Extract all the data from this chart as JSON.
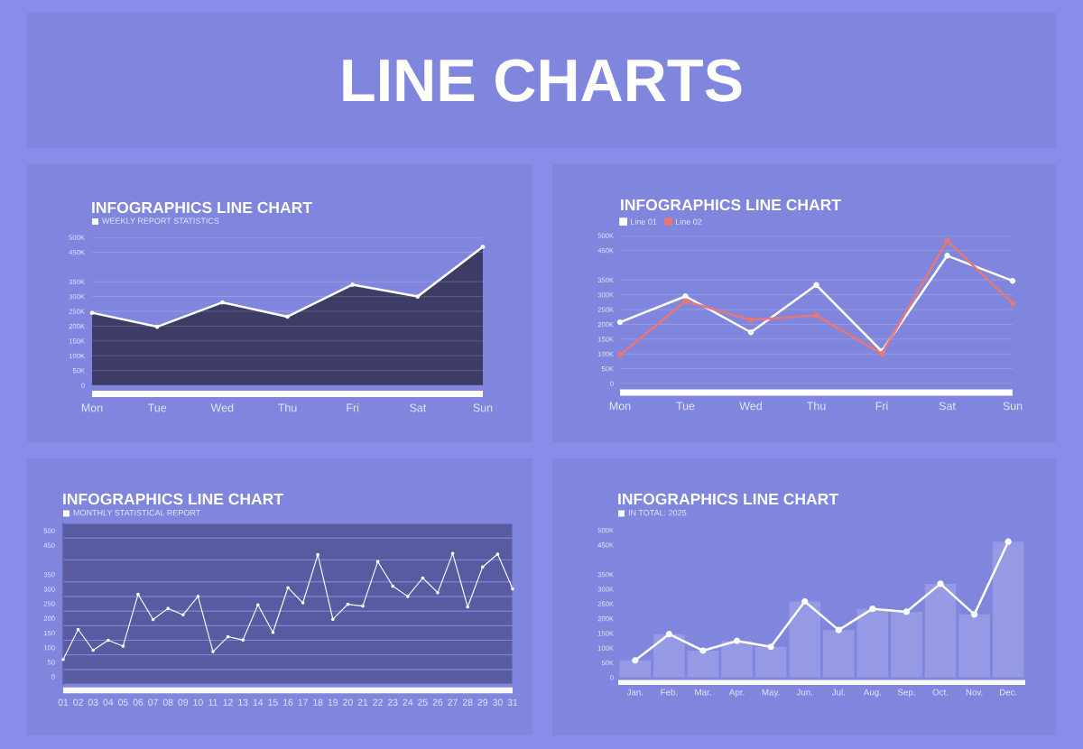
{
  "chart_data": [
    {
      "type": "other",
      "title": "LINE CHARTS"
    },
    {
      "type": "area",
      "title": "INFOGRAPHICS LINE CHART",
      "subtitle": "WEEKLY REPORT STATISTICS",
      "categories": [
        "Mon",
        "Tue",
        "Wed",
        "Thu",
        "Fri",
        "Sat",
        "Sun"
      ],
      "series": [
        {
          "color": "#3d3c66",
          "values": [
            245000,
            198000,
            280000,
            232000,
            340000,
            300000,
            468000
          ]
        }
      ],
      "ylim": [
        0,
        500000
      ],
      "yticks": [
        0,
        {
          "value": 50000,
          "label": "50K"
        },
        {
          "value": 100000,
          "label": "100K"
        },
        {
          "value": 150000,
          "label": "150K"
        },
        {
          "value": 200000,
          "label": "200K"
        },
        {
          "value": 250000,
          "label": "250K"
        },
        {
          "value": 300000,
          "label": "300K"
        },
        {
          "value": 350000,
          "label": "350K"
        },
        {
          "value": 450000,
          "label": "450K"
        },
        {
          "value": 500000,
          "label": "500K"
        }
      ],
      "grid": "y",
      "marker": "circle"
    },
    {
      "type": "line",
      "title": "INFOGRAPHICS LINE CHART",
      "categories": [
        "Mon",
        "Tue",
        "Wed",
        "Thu",
        "Fri",
        "Sat",
        "Sun"
      ],
      "series": [
        {
          "name": "Line 01",
          "color": "#ffffff",
          "values": [
            207000,
            295000,
            173000,
            333000,
            109000,
            432000,
            347000
          ]
        },
        {
          "name": "Line 02",
          "color": "#e67777",
          "values": [
            97000,
            278000,
            215000,
            230000,
            100000,
            483000,
            271000
          ]
        }
      ],
      "ylim": [
        0,
        500000
      ],
      "yticks": [
        0,
        {
          "value": 50000,
          "label": "50K"
        },
        {
          "value": 100000,
          "label": "100K"
        },
        {
          "value": 150000,
          "label": "150K"
        },
        {
          "value": 200000,
          "label": "200K"
        },
        {
          "value": 250000,
          "label": "250K"
        },
        {
          "value": 300000,
          "label": "300K"
        },
        {
          "value": 350000,
          "label": "350K"
        },
        {
          "value": 450000,
          "label": "450K"
        },
        {
          "value": 500000,
          "label": "500K"
        }
      ],
      "grid": "y",
      "legend": "top left",
      "marker": "circle"
    },
    {
      "type": "line",
      "title": "INFOGRAPHICS LINE CHART",
      "subtitle": "MONTHLY STATISTICAL REPORT",
      "categories": [
        "01",
        "02",
        "03",
        "04",
        "05",
        "06",
        "07",
        "08",
        "09",
        "10",
        "11",
        "12",
        "13",
        "14",
        "15",
        "16",
        "17",
        "18",
        "19",
        "20",
        "21",
        "22",
        "23",
        "24",
        "25",
        "26",
        "27",
        "28",
        "29",
        "30",
        "31"
      ],
      "series": [
        {
          "color": "#ffffff",
          "values": [
            59,
            162,
            91,
            125,
            105,
            282,
            196,
            234,
            212,
            275,
            86,
            137,
            126,
            246,
            152,
            305,
            253,
            418,
            197,
            248,
            242,
            394,
            310,
            275,
            338,
            288,
            422,
            239,
            376,
            420,
            301
          ]
        }
      ],
      "ylim": [
        -25,
        525
      ],
      "yticks": [
        0,
        50,
        100,
        150,
        200,
        250,
        300,
        350,
        450,
        500
      ],
      "bands": [
        {
          "axis": "y",
          "from": -25,
          "to": 25,
          "color": "#585ba0"
        },
        {
          "axis": "y",
          "from": 25,
          "to": 75,
          "color": "#585ba0"
        },
        {
          "axis": "y",
          "from": 75,
          "to": 125,
          "color": "#585ba0"
        },
        {
          "axis": "y",
          "from": 125,
          "to": 175,
          "color": "#585ba0"
        },
        {
          "axis": "y",
          "from": 175,
          "to": 225,
          "color": "#585ba0"
        },
        {
          "axis": "y",
          "from": 225,
          "to": 275,
          "color": "#585ba0"
        },
        {
          "axis": "y",
          "from": 275,
          "to": 325,
          "color": "#585ba0"
        },
        {
          "axis": "y",
          "from": 325,
          "to": 400,
          "color": "#585ba0"
        },
        {
          "axis": "y",
          "from": 400,
          "to": 475,
          "color": "#585ba0"
        },
        {
          "axis": "y",
          "from": 475,
          "to": 525,
          "color": "#585ba0"
        }
      ],
      "marker": "circle"
    },
    {
      "type": "line",
      "title": "INFOGRAPHICS LINE CHART",
      "subtitle": "IN TOTAL: 2025",
      "categories": [
        "Jan.",
        "Feb.",
        "Mar.",
        "Apr.",
        "May.",
        "Jun.",
        "Jul.",
        "Aug.",
        "Sep.",
        "Oct.",
        "Nov.",
        "Dec."
      ],
      "series": [
        {
          "type": "bar",
          "color": "#9699e3",
          "values": [
            58000,
            147000,
            91000,
            124000,
            104000,
            258000,
            161000,
            233000,
            223000,
            318000,
            214000,
            461000
          ]
        },
        {
          "color": "#ffffff",
          "values": [
            58000,
            147000,
            91000,
            124000,
            104000,
            258000,
            161000,
            233000,
            223000,
            318000,
            214000,
            461000
          ]
        }
      ],
      "ylim": [
        0,
        500000
      ],
      "yticks": [
        0,
        {
          "value": 50000,
          "label": "50K"
        },
        {
          "value": 100000,
          "label": "100K"
        },
        {
          "value": 150000,
          "label": "150K"
        },
        {
          "value": 200000,
          "label": "200K"
        },
        {
          "value": 250000,
          "label": "250K"
        },
        {
          "value": 300000,
          "label": "300K"
        },
        {
          "value": 350000,
          "label": "350K"
        },
        {
          "value": 450000,
          "label": "450K"
        },
        {
          "value": 500000,
          "label": "500K"
        }
      ],
      "marker": "circle"
    }
  ]
}
